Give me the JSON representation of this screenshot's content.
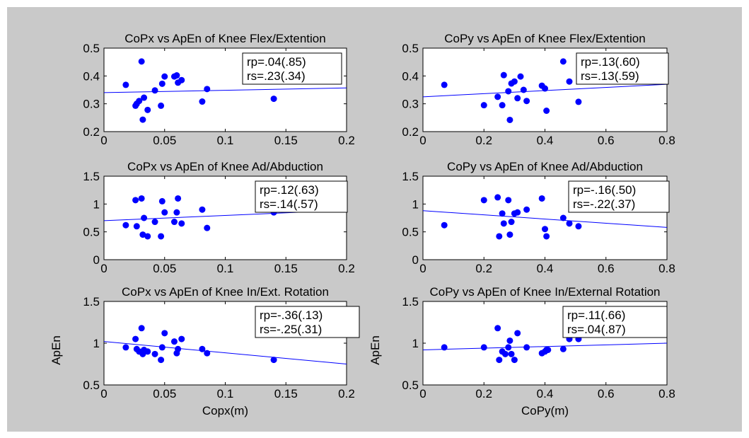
{
  "colors": {
    "background": "#c9c9c9",
    "plot": "#ffffff",
    "marker": "#0000ff",
    "fit": "#0000ff",
    "axis": "#000000"
  },
  "chart_data": [
    {
      "type": "scatter",
      "title": "CoPx vs ApEn of Knee Flex/Extention",
      "xlabel": "",
      "ylabel": "",
      "xlim": [
        0,
        0.2
      ],
      "ylim": [
        0.2,
        0.5
      ],
      "xticks": [
        "0",
        "0.05",
        "0.1",
        "0.15",
        "0.2"
      ],
      "yticks": [
        "0.5",
        "0.4",
        "0.3",
        "0.2"
      ],
      "stats": [
        "rp=.04(.85)",
        "rs=.23(.34)"
      ],
      "legend_position": "top-right",
      "fit": {
        "x": [
          0,
          0.2
        ],
        "y": [
          0.34,
          0.357
        ]
      },
      "points": {
        "x": [
          0.018,
          0.026,
          0.027,
          0.029,
          0.031,
          0.032,
          0.033,
          0.036,
          0.042,
          0.047,
          0.048,
          0.05,
          0.058,
          0.06,
          0.061,
          0.064,
          0.081,
          0.085,
          0.14
        ],
        "y": [
          0.368,
          0.293,
          0.3,
          0.31,
          0.452,
          0.243,
          0.322,
          0.278,
          0.348,
          0.293,
          0.372,
          0.398,
          0.398,
          0.402,
          0.376,
          0.385,
          0.308,
          0.353,
          0.318
        ]
      }
    },
    {
      "type": "scatter",
      "title": "CoPy vs ApEn of Knee Flex/Extention",
      "xlabel": "",
      "ylabel": "",
      "xlim": [
        0,
        0.8
      ],
      "ylim": [
        0.2,
        0.5
      ],
      "xticks": [
        "0",
        "0.2",
        "0.4",
        "0.6",
        "0.8"
      ],
      "yticks": [
        "0.5",
        "0.4",
        "0.3",
        "0.2"
      ],
      "stats": [
        "rp=.13(.60)",
        "rs=.13(.59)"
      ],
      "legend_position": "top-right",
      "fit": {
        "x": [
          0,
          0.8
        ],
        "y": [
          0.325,
          0.37
        ]
      },
      "points": {
        "x": [
          0.07,
          0.2,
          0.245,
          0.26,
          0.265,
          0.28,
          0.285,
          0.29,
          0.3,
          0.31,
          0.32,
          0.33,
          0.34,
          0.39,
          0.4,
          0.405,
          0.46,
          0.48,
          0.51
        ],
        "y": [
          0.368,
          0.295,
          0.325,
          0.295,
          0.403,
          0.345,
          0.242,
          0.373,
          0.38,
          0.32,
          0.398,
          0.35,
          0.31,
          0.365,
          0.355,
          0.275,
          0.452,
          0.38,
          0.307
        ]
      }
    },
    {
      "type": "scatter",
      "title": "CoPx vs ApEn of Knee Ad/Abduction",
      "xlabel": "",
      "ylabel": "",
      "xlim": [
        0,
        0.2
      ],
      "ylim": [
        0,
        1.5
      ],
      "xticks": [
        "0",
        "0.05",
        "0.1",
        "0.15",
        "0.2"
      ],
      "yticks": [
        "1.5",
        "1",
        "0.5",
        "0"
      ],
      "stats": [
        "rp=.12(.63)",
        "rs=.14(.57)"
      ],
      "legend_position": "top-right",
      "fit": {
        "x": [
          0,
          0.2
        ],
        "y": [
          0.7,
          0.89
        ]
      },
      "points": {
        "x": [
          0.018,
          0.026,
          0.027,
          0.031,
          0.032,
          0.033,
          0.036,
          0.042,
          0.047,
          0.048,
          0.05,
          0.058,
          0.06,
          0.061,
          0.064,
          0.081,
          0.085,
          0.14
        ],
        "y": [
          0.62,
          1.07,
          0.6,
          1.1,
          0.45,
          0.75,
          0.42,
          0.68,
          0.42,
          1.05,
          0.85,
          0.68,
          0.85,
          1.1,
          0.65,
          0.9,
          0.57,
          0.85
        ]
      }
    },
    {
      "type": "scatter",
      "title": "CoPy vs ApEn of Knee Ad/Abduction",
      "xlabel": "",
      "ylabel": "",
      "xlim": [
        0,
        0.8
      ],
      "ylim": [
        0,
        1.5
      ],
      "xticks": [
        "0",
        "0.2",
        "0.4",
        "0.6",
        "0.8"
      ],
      "yticks": [
        "1.5",
        "1",
        "0.5",
        "0"
      ],
      "stats": [
        "rp=-.16(.50)",
        "rs=-.22(.37)"
      ],
      "legend_position": "top-right",
      "fit": {
        "x": [
          0,
          0.8
        ],
        "y": [
          0.88,
          0.58
        ]
      },
      "points": {
        "x": [
          0.07,
          0.2,
          0.245,
          0.25,
          0.26,
          0.265,
          0.28,
          0.285,
          0.29,
          0.3,
          0.31,
          0.34,
          0.39,
          0.4,
          0.405,
          0.46,
          0.48,
          0.51
        ],
        "y": [
          0.62,
          1.07,
          1.12,
          0.42,
          0.83,
          0.65,
          1.07,
          0.45,
          0.68,
          0.83,
          0.85,
          0.9,
          1.1,
          0.55,
          0.42,
          0.75,
          0.65,
          0.6
        ]
      }
    },
    {
      "type": "scatter",
      "title": "CoPx vs ApEn of Knee In/Ext. Rotation",
      "xlabel": "Copx(m)",
      "ylabel": "ApEn",
      "xlim": [
        0,
        0.2
      ],
      "ylim": [
        0.5,
        1.5
      ],
      "xticks": [
        "0",
        "0.05",
        "0.1",
        "0.15",
        "0.2"
      ],
      "yticks": [
        "1.5",
        "1",
        "0.5"
      ],
      "stats": [
        "rp=-.36(.13)",
        "rs=-.25(.31)"
      ],
      "legend_position": "top-right",
      "fit": {
        "x": [
          0,
          0.2
        ],
        "y": [
          1.02,
          0.75
        ]
      },
      "points": {
        "x": [
          0.018,
          0.026,
          0.027,
          0.029,
          0.031,
          0.032,
          0.033,
          0.036,
          0.042,
          0.047,
          0.048,
          0.05,
          0.058,
          0.06,
          0.061,
          0.064,
          0.081,
          0.085,
          0.14
        ],
        "y": [
          0.95,
          1.05,
          0.93,
          0.9,
          1.18,
          0.87,
          0.92,
          0.9,
          0.87,
          0.8,
          0.95,
          1.12,
          1.02,
          0.88,
          0.93,
          1.05,
          0.93,
          0.88,
          0.8
        ]
      }
    },
    {
      "type": "scatter",
      "title": "CoPy vs ApEn of Knee In/External Rotation",
      "xlabel": "CoPy(m)",
      "ylabel": "ApEn",
      "xlim": [
        0,
        0.8
      ],
      "ylim": [
        0.5,
        1.5
      ],
      "xticks": [
        "0",
        "0.2",
        "0.4",
        "0.6",
        "0.8"
      ],
      "yticks": [
        "1.5",
        "1",
        "0.5"
      ],
      "stats": [
        "rp=.11(.66)",
        "rs=.04(.87)"
      ],
      "legend_position": "top-right",
      "fit": {
        "x": [
          0,
          0.8
        ],
        "y": [
          0.92,
          1.0
        ]
      },
      "points": {
        "x": [
          0.07,
          0.2,
          0.245,
          0.25,
          0.26,
          0.27,
          0.28,
          0.285,
          0.29,
          0.3,
          0.31,
          0.34,
          0.39,
          0.4,
          0.405,
          0.41,
          0.46,
          0.48,
          0.51
        ],
        "y": [
          0.95,
          0.95,
          1.18,
          0.8,
          0.9,
          0.87,
          0.95,
          1.03,
          0.87,
          0.8,
          1.12,
          0.95,
          0.88,
          0.9,
          0.92,
          0.92,
          0.93,
          1.05,
          1.05
        ]
      }
    }
  ]
}
